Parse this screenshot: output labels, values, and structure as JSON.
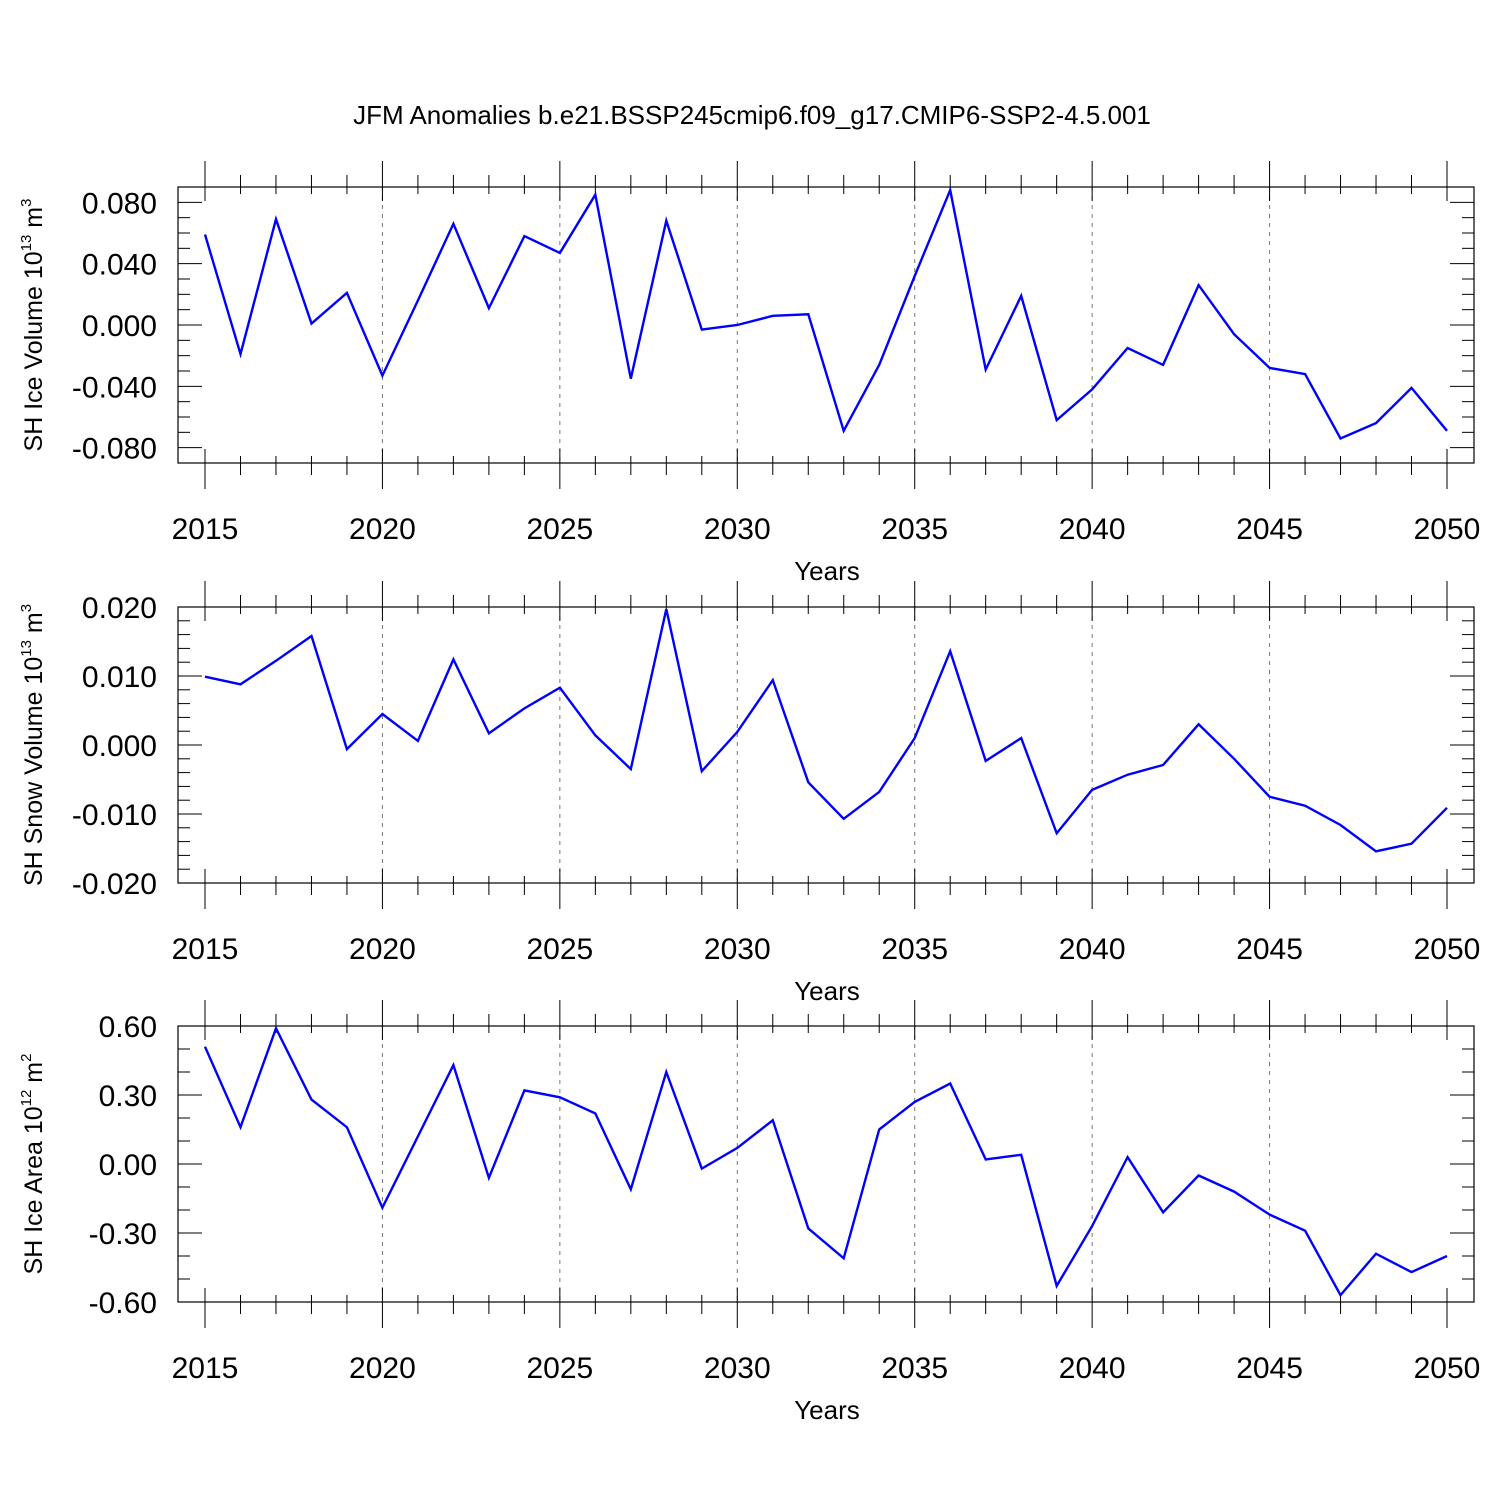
{
  "figure_title": "JFM Anomalies b.e21.BSSP245cmip6.f09_g17.CMIP6-SSP2-4.5.001",
  "chart_data": [
    {
      "type": "line",
      "title": "JFM Anomalies b.e21.BSSP245cmip6.f09_g17.CMIP6-SSP2-4.5.001",
      "xlabel": "Years",
      "ylabel_parts": {
        "main": "SH Ice Volume 10",
        "sup1": "13",
        "unit": " m",
        "sup2": "3"
      },
      "xlim": [
        2015,
        2050
      ],
      "ylim": [
        -0.09,
        0.09
      ],
      "xticks": [
        2015,
        2020,
        2025,
        2030,
        2035,
        2040,
        2045,
        2050
      ],
      "xtick_labels": [
        "2015",
        "2020",
        "2025",
        "2030",
        "2035",
        "2040",
        "2045",
        "2050"
      ],
      "yticks": [
        0.08,
        0.04,
        0.0,
        -0.04,
        -0.08
      ],
      "ytick_labels": [
        "0.080",
        "0.040",
        "0.000",
        "-0.040",
        "-0.080"
      ],
      "y_minor_step": 0.01,
      "grid": "vertical dashed at major x ticks",
      "series": [
        {
          "name": "SH Ice Volume",
          "color": "#0000ff",
          "x": [
            2015,
            2016,
            2017,
            2018,
            2019,
            2020,
            2021,
            2022,
            2023,
            2024,
            2025,
            2026,
            2027,
            2028,
            2029,
            2030,
            2031,
            2032,
            2033,
            2034,
            2035,
            2036,
            2037,
            2038,
            2039,
            2040,
            2041,
            2042,
            2043,
            2044,
            2045,
            2046,
            2047,
            2048,
            2049,
            2050
          ],
          "values": [
            0.059,
            -0.019,
            0.069,
            0.001,
            0.021,
            -0.033,
            0.016,
            0.066,
            0.011,
            0.058,
            0.047,
            0.085,
            -0.035,
            0.068,
            -0.003,
            0.0,
            0.006,
            0.007,
            -0.069,
            -0.026,
            0.032,
            0.088,
            -0.029,
            0.019,
            -0.062,
            -0.042,
            -0.015,
            -0.026,
            0.026,
            -0.006,
            -0.028,
            -0.032,
            -0.074,
            -0.064,
            -0.041,
            -0.069
          ]
        }
      ]
    },
    {
      "type": "line",
      "xlabel": "Years",
      "ylabel_parts": {
        "main": "SH Snow Volume 10",
        "sup1": "13",
        "unit": " m",
        "sup2": "3"
      },
      "xlim": [
        2015,
        2050
      ],
      "ylim": [
        -0.02,
        0.02
      ],
      "xticks": [
        2015,
        2020,
        2025,
        2030,
        2035,
        2040,
        2045,
        2050
      ],
      "xtick_labels": [
        "2015",
        "2020",
        "2025",
        "2030",
        "2035",
        "2040",
        "2045",
        "2050"
      ],
      "yticks": [
        0.02,
        0.01,
        0.0,
        -0.01,
        -0.02
      ],
      "ytick_labels": [
        "0.020",
        "0.010",
        "0.000",
        "-0.010",
        "-0.020"
      ],
      "y_minor_step": 0.002,
      "grid": "vertical dashed at major x ticks",
      "series": [
        {
          "name": "SH Snow Volume",
          "color": "#0000ff",
          "x": [
            2015,
            2016,
            2017,
            2018,
            2019,
            2020,
            2021,
            2022,
            2023,
            2024,
            2025,
            2026,
            2027,
            2028,
            2029,
            2030,
            2031,
            2032,
            2033,
            2034,
            2035,
            2036,
            2037,
            2038,
            2039,
            2040,
            2041,
            2042,
            2043,
            2044,
            2045,
            2046,
            2047,
            2048,
            2049,
            2050
          ],
          "values": [
            0.0099,
            0.0088,
            0.0122,
            0.0158,
            -0.0006,
            0.0045,
            0.0006,
            0.0124,
            0.0017,
            0.0053,
            0.0083,
            0.0014,
            -0.0035,
            0.0197,
            -0.0038,
            0.0019,
            0.0094,
            -0.0054,
            -0.0107,
            -0.0068,
            0.001,
            0.0136,
            -0.0023,
            0.001,
            -0.0128,
            -0.0065,
            -0.0043,
            -0.0029,
            0.003,
            -0.002,
            -0.0075,
            -0.0088,
            -0.0116,
            -0.0154,
            -0.0143,
            -0.0091
          ]
        }
      ]
    },
    {
      "type": "line",
      "xlabel": "Years",
      "ylabel_parts": {
        "main": "SH Ice Area 10",
        "sup1": "12",
        "unit": " m",
        "sup2": "2"
      },
      "xlim": [
        2015,
        2050
      ],
      "ylim": [
        -0.6,
        0.6
      ],
      "xticks": [
        2015,
        2020,
        2025,
        2030,
        2035,
        2040,
        2045,
        2050
      ],
      "xtick_labels": [
        "2015",
        "2020",
        "2025",
        "2030",
        "2035",
        "2040",
        "2045",
        "2050"
      ],
      "yticks": [
        0.6,
        0.3,
        0.0,
        -0.3,
        -0.6
      ],
      "ytick_labels": [
        "0.60",
        "0.30",
        "0.00",
        "-0.30",
        "-0.60"
      ],
      "y_minor_step": 0.1,
      "grid": "vertical dashed at major x ticks",
      "series": [
        {
          "name": "SH Ice Area",
          "color": "#0000ff",
          "x": [
            2015,
            2016,
            2017,
            2018,
            2019,
            2020,
            2021,
            2022,
            2023,
            2024,
            2025,
            2026,
            2027,
            2028,
            2029,
            2030,
            2031,
            2032,
            2033,
            2034,
            2035,
            2036,
            2037,
            2038,
            2039,
            2040,
            2041,
            2042,
            2043,
            2044,
            2045,
            2046,
            2047,
            2048,
            2049,
            2050
          ],
          "values": [
            0.51,
            0.16,
            0.59,
            0.28,
            0.16,
            -0.19,
            0.12,
            0.43,
            -0.06,
            0.32,
            0.29,
            0.22,
            -0.11,
            0.4,
            -0.02,
            0.07,
            0.19,
            -0.28,
            -0.41,
            0.15,
            0.27,
            0.35,
            0.02,
            0.04,
            -0.53,
            -0.27,
            0.03,
            -0.21,
            -0.05,
            -0.12,
            -0.22,
            -0.29,
            -0.57,
            -0.39,
            -0.47,
            -0.4
          ]
        }
      ]
    }
  ]
}
